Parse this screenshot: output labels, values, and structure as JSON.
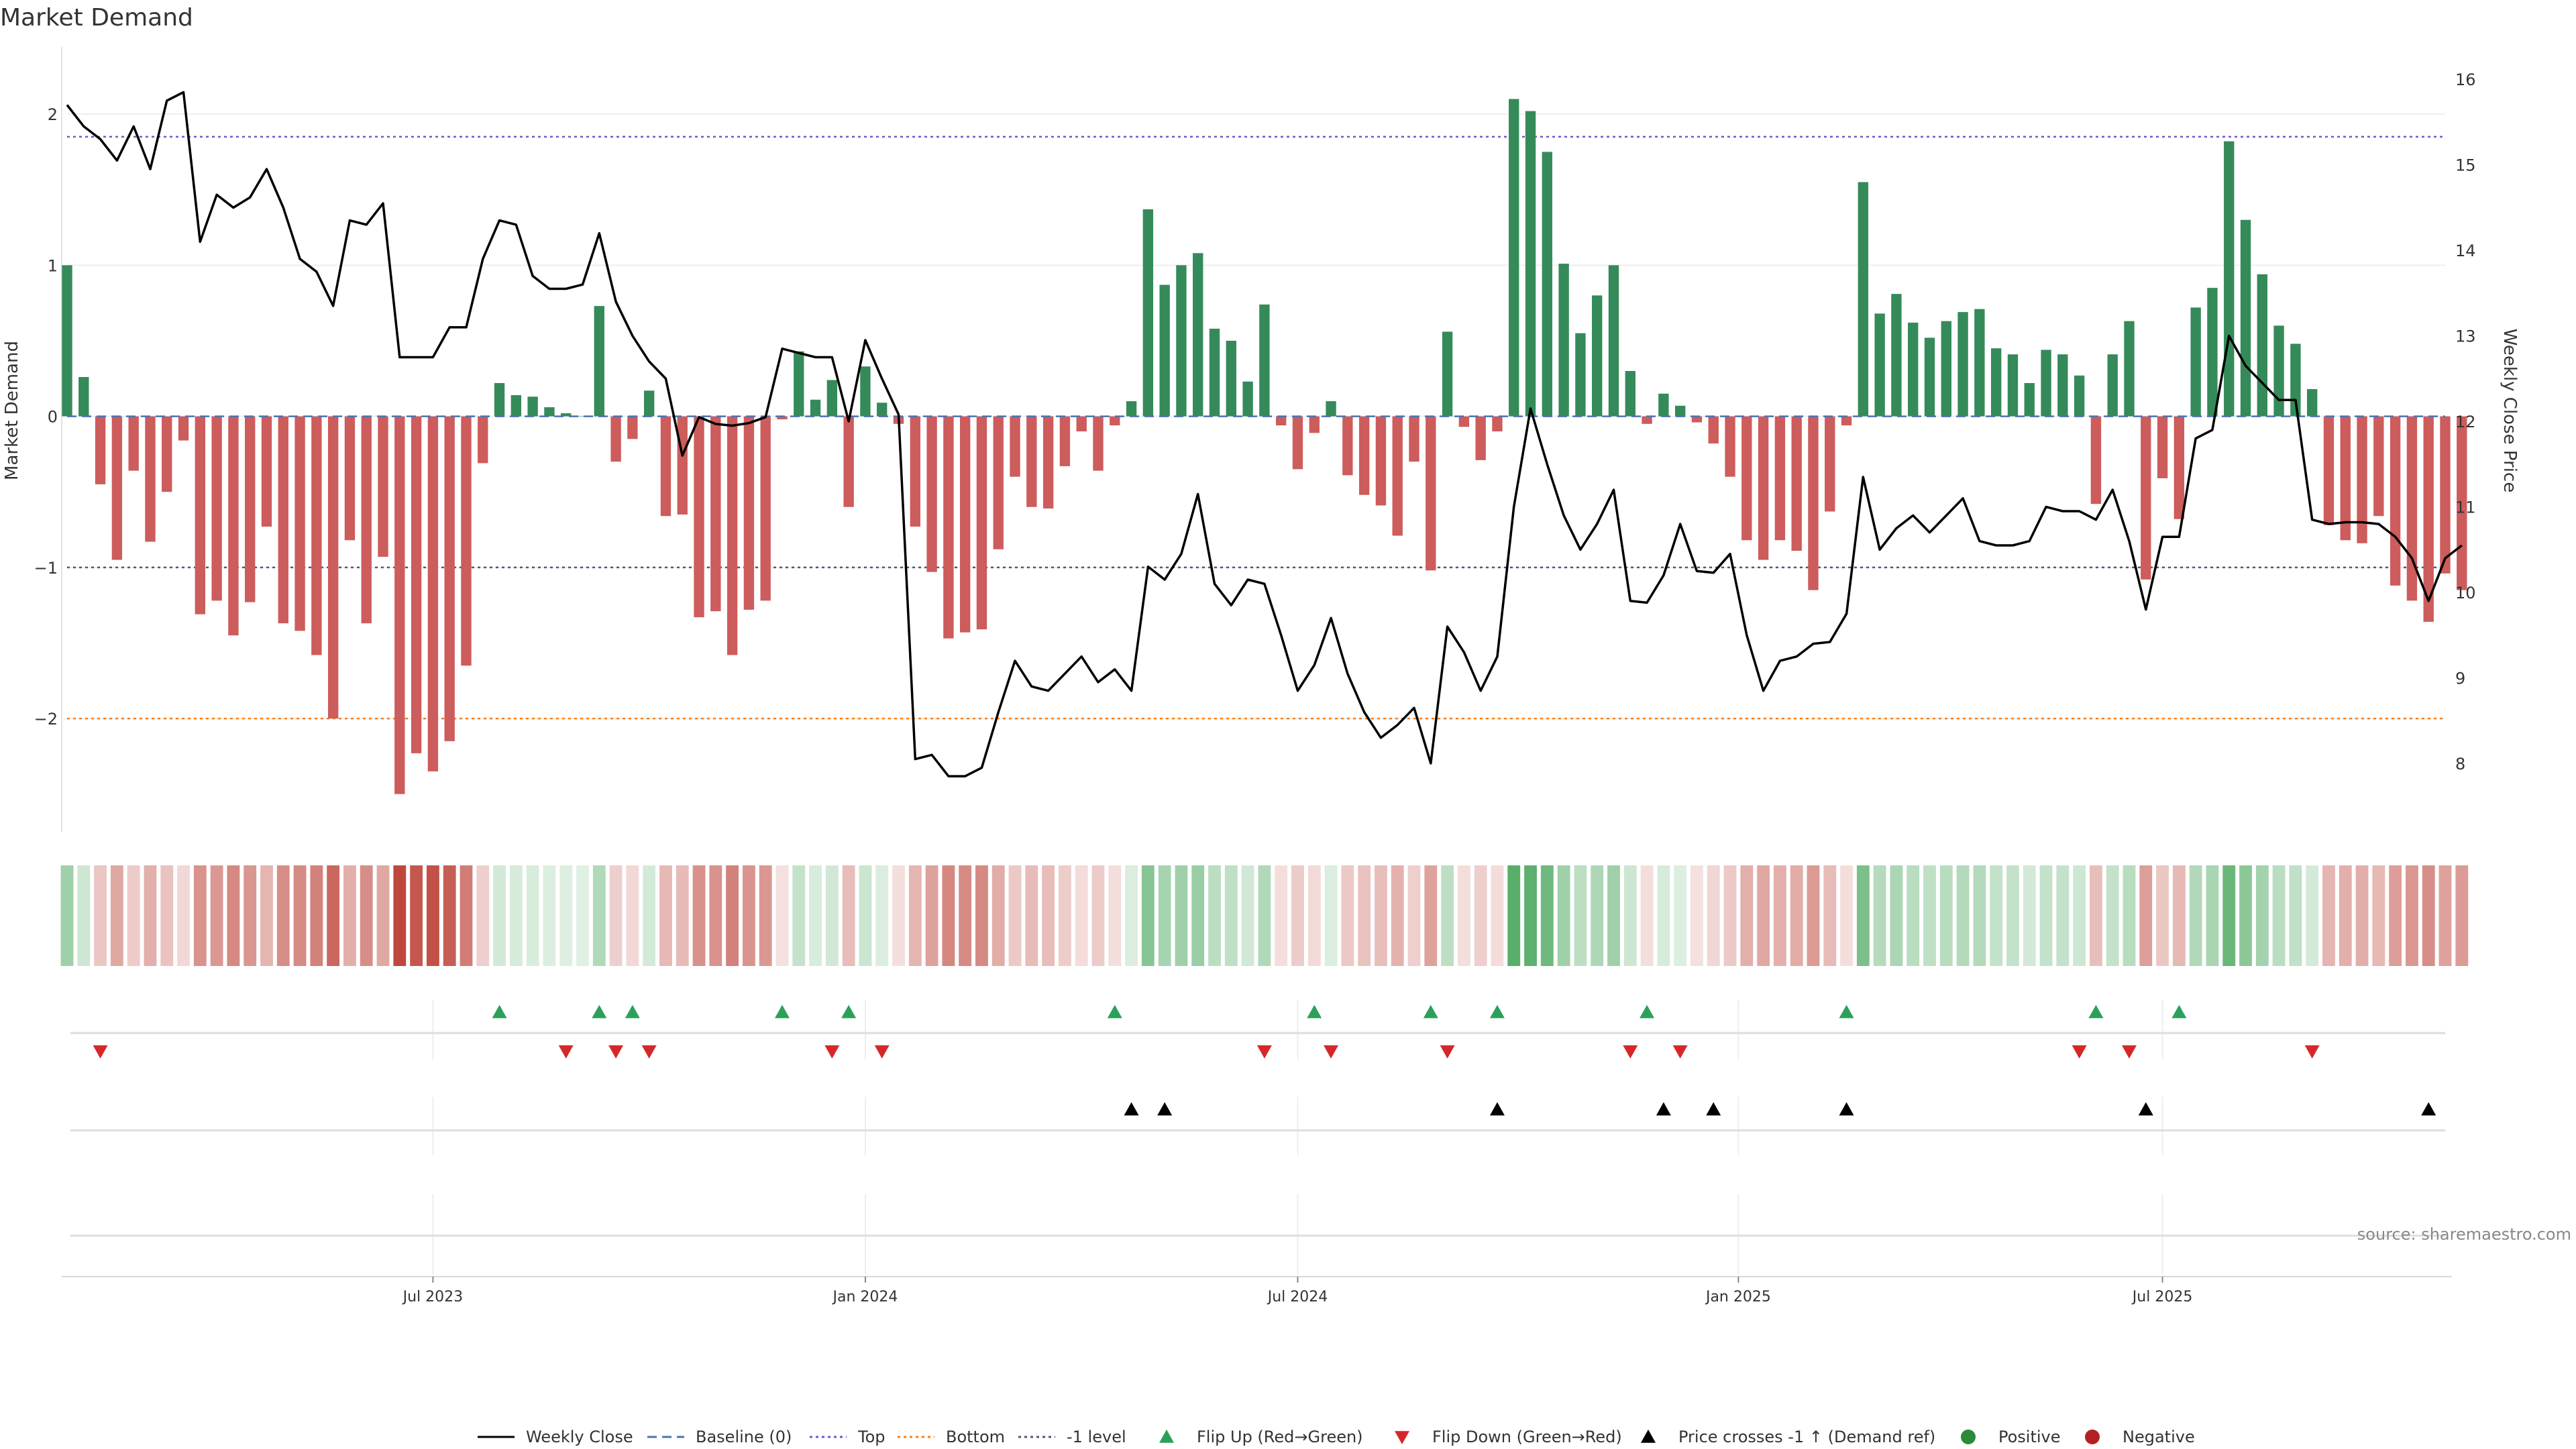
{
  "chart_data": {
    "type": "bar",
    "title": "Market Demand",
    "ylabel": "Market Demand",
    "y2label": "Weekly Close Price",
    "source": "source: sharemaestro.com",
    "ylim": [
      -2.75,
      2.4
    ],
    "y2lim": [
      7.2,
      16.3
    ],
    "yticks": [
      {
        "v": 2,
        "label": "2"
      },
      {
        "v": 1,
        "label": "1"
      },
      {
        "v": 0,
        "label": "0"
      },
      {
        "v": -1,
        "label": "−1"
      },
      {
        "v": -2,
        "label": "−2"
      }
    ],
    "y2ticks": [
      {
        "v": 16,
        "label": "16"
      },
      {
        "v": 15,
        "label": "15"
      },
      {
        "v": 14,
        "label": "14"
      },
      {
        "v": 13,
        "label": "13"
      },
      {
        "v": 12,
        "label": "12"
      },
      {
        "v": 11,
        "label": "11"
      },
      {
        "v": 10,
        "label": "10"
      },
      {
        "v": 9,
        "label": "9"
      },
      {
        "v": 8,
        "label": "8"
      }
    ],
    "reference_lines": {
      "top": 1.85,
      "bottom": -2.0,
      "minus_one": -1.0,
      "baseline": 0
    },
    "x_range": [
      0,
      143
    ],
    "date_ticks": [
      {
        "i": 22,
        "label": "Jul 2023"
      },
      {
        "i": 48,
        "label": "Jan 2024"
      },
      {
        "i": 74,
        "label": "Jul 2024"
      },
      {
        "i": 100.5,
        "label": "Jan 2025"
      },
      {
        "i": 126,
        "label": "Jul 2025"
      }
    ],
    "demand": [
      1.0,
      0.26,
      -0.45,
      -0.95,
      -0.36,
      -0.83,
      -0.5,
      -0.16,
      -1.31,
      -1.22,
      -1.45,
      -1.23,
      -0.73,
      -1.37,
      -1.42,
      -1.58,
      -2.0,
      -0.82,
      -1.37,
      -0.93,
      -2.5,
      -2.23,
      -2.35,
      -2.15,
      -1.65,
      -0.31,
      0.22,
      0.14,
      0.13,
      0.06,
      0.02,
      0.0,
      0.73,
      -0.3,
      -0.15,
      0.17,
      -0.66,
      -0.65,
      -1.33,
      -1.29,
      -1.58,
      -1.28,
      -1.22,
      -0.02,
      0.43,
      0.11,
      0.24,
      -0.6,
      0.33,
      0.09,
      -0.05,
      -0.73,
      -1.03,
      -1.47,
      -1.43,
      -1.41,
      -0.88,
      -0.4,
      -0.6,
      -0.61,
      -0.33,
      -0.1,
      -0.36,
      -0.06,
      0.1,
      1.37,
      0.87,
      1.0,
      1.08,
      0.58,
      0.5,
      0.23,
      0.74,
      -0.06,
      -0.35,
      -0.11,
      0.1,
      -0.39,
      -0.52,
      -0.59,
      -0.79,
      -0.3,
      -1.02,
      0.56,
      -0.07,
      -0.29,
      -0.1,
      2.1,
      2.02,
      1.75,
      1.01,
      0.55,
      0.8,
      1.0,
      0.3,
      -0.05,
      0.15,
      0.07,
      -0.04,
      -0.18,
      -0.4,
      -0.82,
      -0.95,
      -0.82,
      -0.89,
      -1.15,
      -0.63,
      -0.06,
      1.55,
      0.68,
      0.81,
      0.62,
      0.52,
      0.63,
      0.69,
      0.71,
      0.45,
      0.41,
      0.22,
      0.44,
      0.41,
      0.27,
      -0.58,
      0.41,
      0.63,
      -1.08,
      -0.41,
      -0.68,
      0.72,
      0.85,
      1.82,
      1.3,
      0.94,
      0.6,
      0.48,
      0.18,
      -0.72,
      -0.82,
      -0.84,
      -0.66,
      -1.12,
      -1.22,
      -1.36,
      -1.04,
      -1.15
    ],
    "weekly_close": [
      15.7,
      15.45,
      15.3,
      15.05,
      15.45,
      14.95,
      15.75,
      15.85,
      14.1,
      14.65,
      14.5,
      14.62,
      14.95,
      14.5,
      13.9,
      13.75,
      13.35,
      14.35,
      14.3,
      14.55,
      12.75,
      12.75,
      12.75,
      13.1,
      13.1,
      13.9,
      14.35,
      14.3,
      13.7,
      13.55,
      13.55,
      13.6,
      14.2,
      13.4,
      13.0,
      12.7,
      12.5,
      11.6,
      12.05,
      11.97,
      11.95,
      11.98,
      12.05,
      12.85,
      12.8,
      12.75,
      12.75,
      12.0,
      12.95,
      12.5,
      12.08,
      8.05,
      8.1,
      7.85,
      7.85,
      7.95,
      8.6,
      9.2,
      8.9,
      8.85,
      9.05,
      9.25,
      8.95,
      9.1,
      8.85,
      10.3,
      10.15,
      10.45,
      11.15,
      10.1,
      9.85,
      10.15,
      10.1,
      9.5,
      8.85,
      9.15,
      9.7,
      9.05,
      8.6,
      8.3,
      8.45,
      8.65,
      8.0,
      9.6,
      9.3,
      8.85,
      9.25,
      11.0,
      12.15,
      11.5,
      10.9,
      10.5,
      10.8,
      11.2,
      9.9,
      9.88,
      10.2,
      10.8,
      10.25,
      10.23,
      10.45,
      9.5,
      8.85,
      9.2,
      9.25,
      9.4,
      9.42,
      9.75,
      11.35,
      10.5,
      10.75,
      10.9,
      10.7,
      10.9,
      11.1,
      10.6,
      10.55,
      10.55,
      10.6,
      11.0,
      10.95,
      10.95,
      10.85,
      11.2,
      10.6,
      9.8,
      10.65,
      10.65,
      11.8,
      11.9,
      13.0,
      12.65,
      12.45,
      12.25,
      12.25,
      10.85,
      10.8,
      10.82,
      10.82,
      10.8,
      10.65,
      10.4,
      9.9,
      10.4,
      10.55
    ],
    "flip_up": [
      26,
      32,
      34,
      43,
      47,
      63,
      75,
      82,
      86,
      95,
      107,
      122,
      127
    ],
    "flip_down": [
      2,
      30,
      33,
      35,
      46,
      49,
      72,
      76,
      83,
      94,
      97,
      121,
      124,
      135
    ],
    "price_crosses": [
      64,
      66,
      86,
      96,
      99,
      107,
      125,
      142
    ],
    "legend": [
      {
        "label": "Weekly Close",
        "marker": "line",
        "color": "#000000"
      },
      {
        "label": "Baseline (0)",
        "marker": "dash",
        "color": "#4c72b0"
      },
      {
        "label": "Top",
        "marker": "dot",
        "color": "#6a5acd"
      },
      {
        "label": "Bottom",
        "marker": "dot",
        "color": "#ff7f0e"
      },
      {
        "label": "-1 level",
        "marker": "dot",
        "color": "#555577"
      },
      {
        "label": "Flip Up (Red→Green)",
        "marker": "tri-up",
        "color": "#2ca05a"
      },
      {
        "label": "Flip Down (Green→Red)",
        "marker": "tri-down",
        "color": "#d62728"
      },
      {
        "label": "Price crosses -1 ↑ (Demand ref)",
        "marker": "tri-up",
        "color": "#000000"
      },
      {
        "label": "Positive",
        "marker": "circle",
        "color": "#2a8a3a"
      },
      {
        "label": "Negative",
        "marker": "circle",
        "color": "#b22222"
      }
    ],
    "colors": {
      "positive_bar": "#358a5a",
      "negative_bar": "#cd5c5c",
      "price_line": "#000000",
      "top_line": "#6a5acd",
      "bottom_line": "#ff7f0e",
      "minus_one_line": "#555577",
      "baseline": "#4c72b0",
      "flip_up": "#2ca05a",
      "flip_down": "#d62728",
      "cross": "#000000"
    }
  }
}
